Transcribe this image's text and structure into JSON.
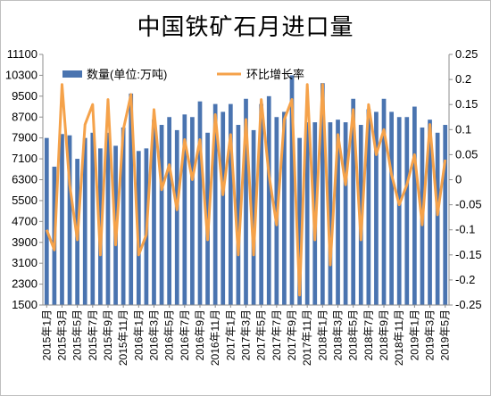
{
  "chart_data": {
    "type": "bar",
    "title": "中国铁矿石月进口量",
    "legend_position": "top-left",
    "grid": false,
    "y_left": {
      "min": 1500,
      "max": 11100,
      "ticks": [
        "1500",
        "2300",
        "3100",
        "3900",
        "4700",
        "5500",
        "6300",
        "7100",
        "7900",
        "8700",
        "9500",
        "10300",
        "11100"
      ]
    },
    "y_right": {
      "min": -0.25,
      "max": 0.25,
      "ticks": [
        "-0.25",
        "-0.2",
        "-0.15",
        "-0.1",
        "-0.05",
        "0",
        "0.05",
        "0.1",
        "0.15",
        "0.2",
        "0.25"
      ]
    },
    "x_tick_labels": [
      "2015年1月",
      "2015年3月",
      "2015年5月",
      "2015年7月",
      "2015年9月",
      "2015年11月",
      "2016年1月",
      "2016年3月",
      "2016年5月",
      "2016年7月",
      "2016年9月",
      "2016年11月",
      "2017年1月",
      "2017年3月",
      "2017年5月",
      "2017年7月",
      "2017年9月",
      "2017年11月",
      "2018年1月",
      "2018年3月",
      "2018年5月",
      "2018年7月",
      "2018年9月",
      "2018年11月",
      "2019年1月",
      "2019年3月",
      "2019年5月"
    ],
    "categories": [
      "2015年1月",
      "2015年2月",
      "2015年3月",
      "2015年4月",
      "2015年5月",
      "2015年6月",
      "2015年7月",
      "2015年8月",
      "2015年9月",
      "2015年10月",
      "2015年11月",
      "2015年12月",
      "2016年1月",
      "2016年2月",
      "2016年3月",
      "2016年4月",
      "2016年5月",
      "2016年6月",
      "2016年7月",
      "2016年8月",
      "2016年9月",
      "2016年10月",
      "2016年11月",
      "2016年12月",
      "2017年1月",
      "2017年2月",
      "2017年3月",
      "2017年4月",
      "2017年5月",
      "2017年6月",
      "2017年7月",
      "2017年8月",
      "2017年9月",
      "2017年10月",
      "2017年11月",
      "2017年12月",
      "2018年1月",
      "2018年2月",
      "2018年3月",
      "2018年4月",
      "2018年5月",
      "2018年6月",
      "2018年7月",
      "2018年8月",
      "2018年9月",
      "2018年10月",
      "2018年11月",
      "2018年12月",
      "2019年1月",
      "2019年2月",
      "2019年3月",
      "2019年4月",
      "2019年5月"
    ],
    "series": [
      {
        "name": "数量(单位:万吨)",
        "kind": "bar",
        "axis": "left",
        "color": "#4a74b0",
        "values": [
          7900,
          6800,
          8050,
          8000,
          7100,
          7900,
          8100,
          7500,
          8100,
          7600,
          8300,
          9600,
          7400,
          7500,
          8600,
          8400,
          8700,
          8200,
          8800,
          8700,
          9300,
          8100,
          9200,
          8900,
          9200,
          8400,
          9400,
          8200,
          9200,
          9500,
          8700,
          8900,
          10300,
          7900,
          8500,
          8500,
          10000,
          8500,
          8600,
          8500,
          9400,
          8400,
          9000,
          8900,
          9400,
          8900,
          8700,
          8700,
          9100,
          8300,
          8600,
          8100,
          8400
        ]
      },
      {
        "name": "环比增长率",
        "kind": "line",
        "axis": "right",
        "color": "#f5a24a",
        "values": [
          -0.1,
          -0.14,
          0.19,
          -0.01,
          -0.12,
          0.11,
          0.15,
          -0.15,
          0.16,
          -0.13,
          0.1,
          0.17,
          -0.15,
          -0.11,
          0.14,
          -0.02,
          0.03,
          -0.06,
          0.08,
          0,
          0.08,
          -0.12,
          0.13,
          -0.03,
          0.09,
          -0.15,
          0.12,
          -0.15,
          0.16,
          0.01,
          -0.09,
          0.12,
          0.16,
          -0.23,
          0.19,
          -0.12,
          0.19,
          -0.17,
          0.09,
          -0.01,
          0.14,
          -0.12,
          0.15,
          0.05,
          0.1,
          0.01,
          -0.05,
          -0.01,
          0.05,
          -0.09,
          0.11,
          -0.07,
          0.04
        ]
      }
    ]
  }
}
